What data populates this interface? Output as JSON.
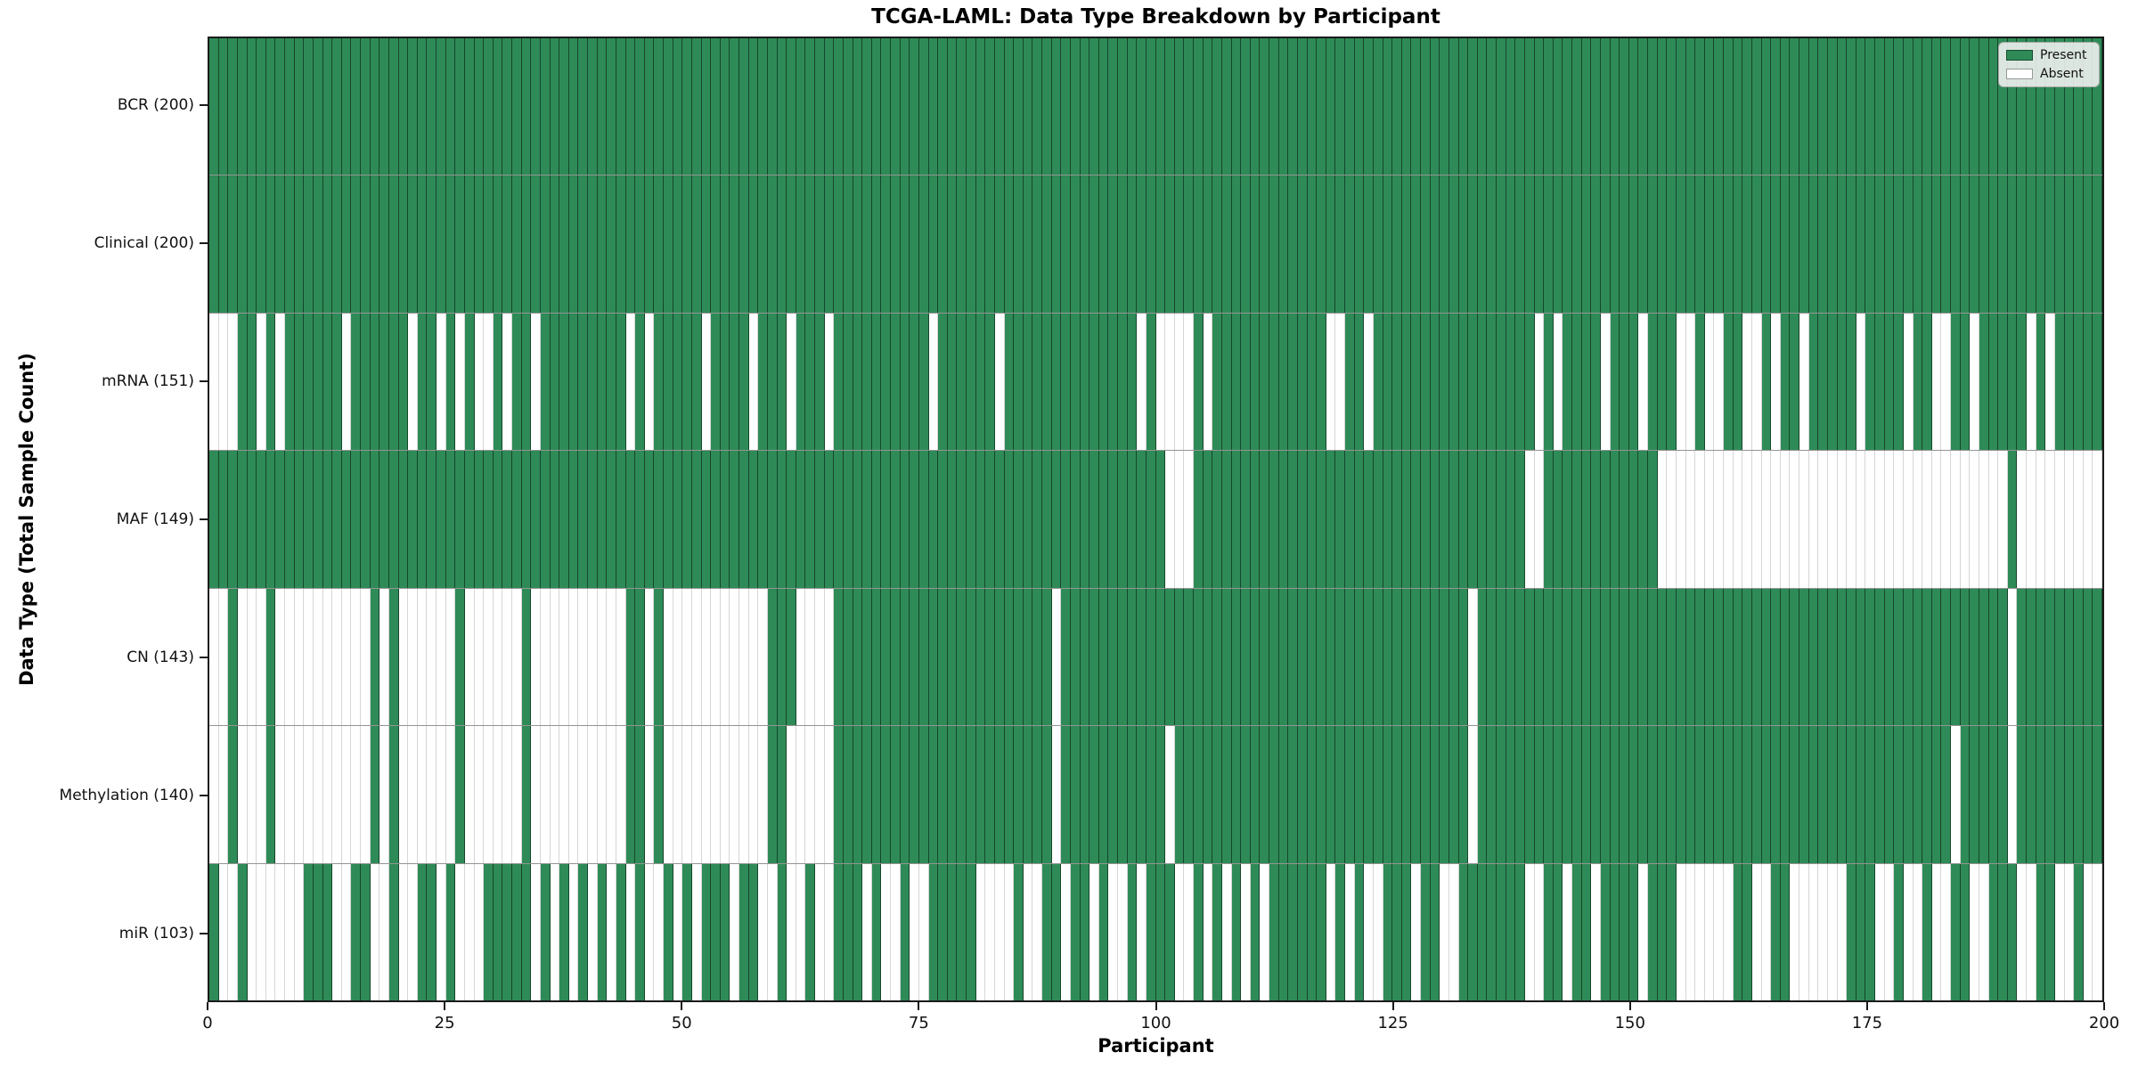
{
  "chart_data": {
    "type": "heatmap",
    "title": "TCGA-LAML: Data Type Breakdown by Participant",
    "xlabel": "Participant",
    "ylabel": "Data Type (Total Sample Count)",
    "n_participants": 200,
    "x_ticks": [
      0,
      25,
      50,
      75,
      100,
      125,
      150,
      175,
      200
    ],
    "xlim": [
      0,
      200
    ],
    "grid": false,
    "legend_position": "upper right",
    "colors": {
      "present": "#2e8b57",
      "absent": "#ffffff"
    },
    "legend": [
      {
        "label": "Present",
        "color": "#2e8b57"
      },
      {
        "label": "Absent",
        "color": "#ffffff"
      }
    ],
    "rows": [
      {
        "label": "BCR (200)",
        "name": "BCR",
        "present_count": 200,
        "absent_participants": []
      },
      {
        "label": "Clinical (200)",
        "name": "Clinical",
        "present_count": 200,
        "absent_participants": []
      },
      {
        "label": "mRNA (151)",
        "name": "mRNA",
        "present_count": 151,
        "absent_participants": [
          0,
          1,
          2,
          5,
          7,
          14,
          21,
          24,
          26,
          28,
          29,
          31,
          34,
          44,
          46,
          52,
          57,
          61,
          65,
          76,
          83,
          98,
          100,
          101,
          102,
          103,
          105,
          118,
          119,
          122,
          140,
          142,
          147,
          151,
          155,
          156,
          158,
          159,
          162,
          163,
          165,
          168,
          174,
          179,
          182,
          183,
          186,
          192,
          194
        ]
      },
      {
        "label": "MAF (149)",
        "name": "MAF",
        "present_count": 149,
        "absent_participants": [
          101,
          102,
          103,
          139,
          140,
          153,
          154,
          155,
          156,
          157,
          158,
          159,
          160,
          161,
          162,
          163,
          164,
          165,
          166,
          167,
          168,
          169,
          170,
          171,
          172,
          173,
          174,
          175,
          176,
          177,
          178,
          179,
          180,
          181,
          182,
          183,
          184,
          185,
          186,
          187,
          188,
          189,
          191,
          192,
          193,
          194,
          195,
          196,
          197,
          198,
          199
        ]
      },
      {
        "label": "CN (143)",
        "name": "CN",
        "present_count": 143,
        "absent_participants": [
          0,
          1,
          3,
          4,
          5,
          7,
          8,
          9,
          10,
          11,
          12,
          13,
          14,
          15,
          16,
          18,
          20,
          21,
          22,
          23,
          24,
          25,
          27,
          28,
          29,
          30,
          31,
          32,
          34,
          35,
          36,
          37,
          38,
          39,
          40,
          41,
          42,
          43,
          46,
          48,
          49,
          50,
          51,
          52,
          53,
          54,
          55,
          56,
          57,
          58,
          62,
          63,
          64,
          65,
          89,
          133,
          190
        ]
      },
      {
        "label": "Methylation (140)",
        "name": "Methylation",
        "present_count": 140,
        "absent_participants": [
          0,
          1,
          3,
          4,
          5,
          7,
          8,
          9,
          10,
          11,
          12,
          13,
          14,
          15,
          16,
          18,
          20,
          21,
          22,
          23,
          24,
          25,
          27,
          28,
          29,
          30,
          31,
          32,
          34,
          35,
          36,
          37,
          38,
          39,
          40,
          41,
          42,
          43,
          46,
          48,
          49,
          50,
          51,
          52,
          53,
          54,
          55,
          56,
          57,
          58,
          61,
          62,
          63,
          64,
          65,
          89,
          101,
          133,
          184,
          190
        ]
      },
      {
        "label": "miR (103)",
        "name": "miR",
        "present_count": 103,
        "absent_participants": [
          1,
          2,
          4,
          5,
          6,
          7,
          8,
          9,
          13,
          14,
          17,
          18,
          20,
          21,
          24,
          26,
          27,
          28,
          34,
          36,
          38,
          40,
          42,
          44,
          46,
          47,
          49,
          51,
          55,
          58,
          59,
          61,
          62,
          64,
          65,
          69,
          71,
          72,
          74,
          75,
          81,
          82,
          83,
          84,
          86,
          87,
          90,
          93,
          95,
          96,
          98,
          102,
          103,
          105,
          107,
          109,
          111,
          118,
          120,
          122,
          123,
          127,
          130,
          131,
          139,
          140,
          143,
          146,
          151,
          155,
          156,
          157,
          158,
          159,
          160,
          163,
          164,
          167,
          168,
          169,
          170,
          171,
          172,
          176,
          177,
          179,
          180,
          182,
          183,
          186,
          187,
          191,
          192,
          195,
          196,
          198,
          199
        ]
      }
    ]
  }
}
